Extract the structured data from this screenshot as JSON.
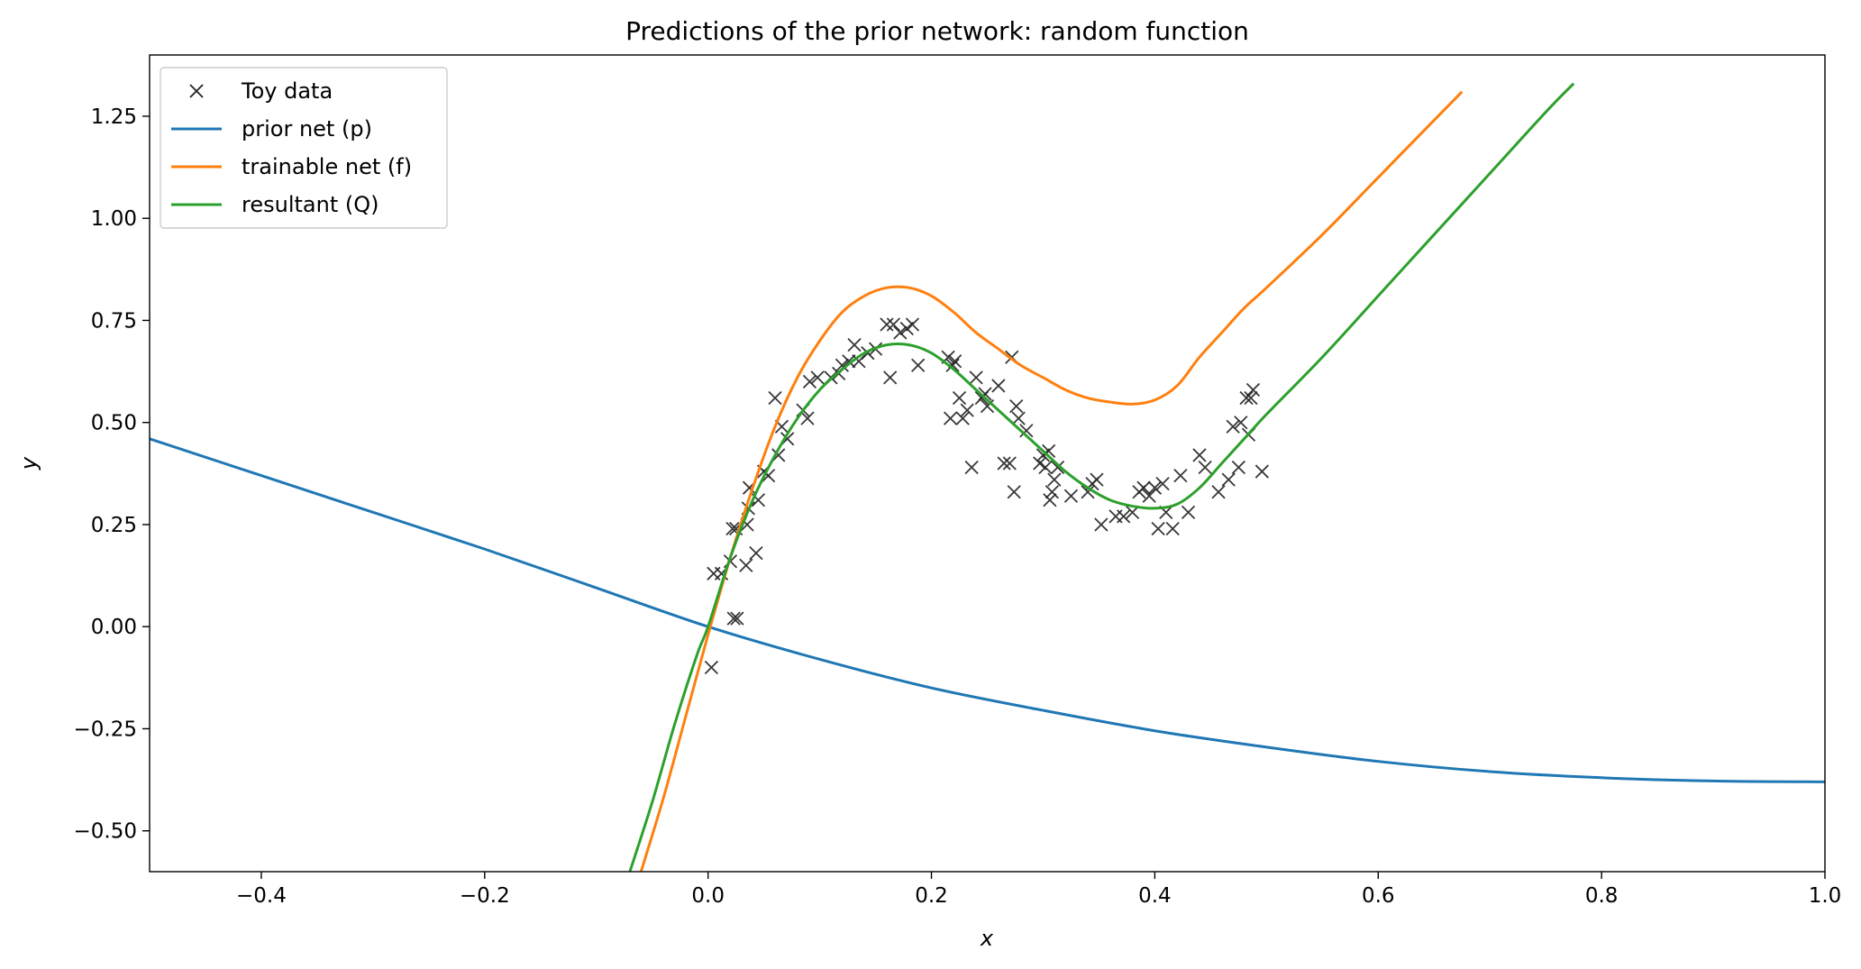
{
  "chart_data": {
    "type": "line",
    "title": "Predictions of the prior network: random function",
    "xlabel": "x",
    "ylabel": "y",
    "xlim": [
      -0.5,
      1.0
    ],
    "ylim": [
      -0.6,
      1.4
    ],
    "xticks": [
      -0.4,
      -0.2,
      0.0,
      0.2,
      0.4,
      0.6,
      0.8,
      1.0
    ],
    "xtick_labels": [
      "−0.4",
      "−0.2",
      "0.0",
      "0.2",
      "0.4",
      "0.6",
      "0.8",
      "1.0"
    ],
    "yticks": [
      -0.5,
      -0.25,
      0.0,
      0.25,
      0.5,
      0.75,
      1.0,
      1.25
    ],
    "ytick_labels": [
      "−0.50",
      "−0.25",
      "0.00",
      "0.25",
      "0.50",
      "0.75",
      "1.00",
      "1.25"
    ],
    "grid": false,
    "legend_position": "top-left",
    "scatter": {
      "name": "Toy data",
      "color": "#222222",
      "marker": "x",
      "points": [
        [
          0.003,
          -0.1
        ],
        [
          0.005,
          0.13
        ],
        [
          0.012,
          0.13
        ],
        [
          0.02,
          0.16
        ],
        [
          0.022,
          0.24
        ],
        [
          0.023,
          0.02
        ],
        [
          0.025,
          0.24
        ],
        [
          0.026,
          0.02
        ],
        [
          0.034,
          0.15
        ],
        [
          0.035,
          0.25
        ],
        [
          0.036,
          0.29
        ],
        [
          0.037,
          0.34
        ],
        [
          0.043,
          0.18
        ],
        [
          0.045,
          0.31
        ],
        [
          0.05,
          0.38
        ],
        [
          0.054,
          0.37
        ],
        [
          0.06,
          0.56
        ],
        [
          0.063,
          0.42
        ],
        [
          0.066,
          0.49
        ],
        [
          0.071,
          0.46
        ],
        [
          0.085,
          0.53
        ],
        [
          0.089,
          0.51
        ],
        [
          0.091,
          0.6
        ],
        [
          0.098,
          0.61
        ],
        [
          0.11,
          0.61
        ],
        [
          0.117,
          0.62
        ],
        [
          0.12,
          0.64
        ],
        [
          0.126,
          0.65
        ],
        [
          0.131,
          0.69
        ],
        [
          0.135,
          0.65
        ],
        [
          0.143,
          0.67
        ],
        [
          0.15,
          0.68
        ],
        [
          0.16,
          0.74
        ],
        [
          0.163,
          0.61
        ],
        [
          0.166,
          0.74
        ],
        [
          0.172,
          0.72
        ],
        [
          0.178,
          0.73
        ],
        [
          0.183,
          0.74
        ],
        [
          0.188,
          0.64
        ],
        [
          0.215,
          0.66
        ],
        [
          0.217,
          0.51
        ],
        [
          0.219,
          0.64
        ],
        [
          0.221,
          0.65
        ],
        [
          0.225,
          0.56
        ],
        [
          0.228,
          0.51
        ],
        [
          0.232,
          0.53
        ],
        [
          0.236,
          0.39
        ],
        [
          0.24,
          0.61
        ],
        [
          0.245,
          0.56
        ],
        [
          0.248,
          0.57
        ],
        [
          0.25,
          0.54
        ],
        [
          0.26,
          0.59
        ],
        [
          0.265,
          0.4
        ],
        [
          0.27,
          0.4
        ],
        [
          0.272,
          0.66
        ],
        [
          0.274,
          0.33
        ],
        [
          0.276,
          0.54
        ],
        [
          0.278,
          0.51
        ],
        [
          0.285,
          0.48
        ],
        [
          0.297,
          0.4
        ],
        [
          0.3,
          0.42
        ],
        [
          0.302,
          0.39
        ],
        [
          0.305,
          0.43
        ],
        [
          0.306,
          0.31
        ],
        [
          0.308,
          0.33
        ],
        [
          0.31,
          0.36
        ],
        [
          0.313,
          0.39
        ],
        [
          0.325,
          0.32
        ],
        [
          0.34,
          0.33
        ],
        [
          0.344,
          0.35
        ],
        [
          0.348,
          0.36
        ],
        [
          0.352,
          0.25
        ],
        [
          0.365,
          0.27
        ],
        [
          0.372,
          0.27
        ],
        [
          0.38,
          0.28
        ],
        [
          0.386,
          0.33
        ],
        [
          0.39,
          0.34
        ],
        [
          0.395,
          0.32
        ],
        [
          0.4,
          0.34
        ],
        [
          0.403,
          0.24
        ],
        [
          0.407,
          0.35
        ],
        [
          0.41,
          0.28
        ],
        [
          0.416,
          0.24
        ],
        [
          0.423,
          0.37
        ],
        [
          0.43,
          0.28
        ],
        [
          0.44,
          0.42
        ],
        [
          0.445,
          0.39
        ],
        [
          0.457,
          0.33
        ],
        [
          0.466,
          0.36
        ],
        [
          0.47,
          0.49
        ],
        [
          0.475,
          0.39
        ],
        [
          0.477,
          0.5
        ],
        [
          0.482,
          0.56
        ],
        [
          0.484,
          0.47
        ],
        [
          0.486,
          0.56
        ],
        [
          0.488,
          0.58
        ],
        [
          0.496,
          0.38
        ]
      ]
    },
    "series": [
      {
        "name": "prior net (p)",
        "color": "#1f77b4",
        "x": [
          -0.5,
          -0.4,
          -0.3,
          -0.2,
          -0.1,
          0.0,
          0.1,
          0.2,
          0.3,
          0.4,
          0.5,
          0.6,
          0.7,
          0.8,
          0.9,
          1.0
        ],
        "y": [
          0.46,
          0.37,
          0.28,
          0.19,
          0.095,
          0.0,
          -0.08,
          -0.15,
          -0.205,
          -0.255,
          -0.295,
          -0.33,
          -0.355,
          -0.37,
          -0.378,
          -0.38
        ]
      },
      {
        "name": "trainable net (f)",
        "color": "#ff7f0e",
        "x": [
          -0.06,
          -0.04,
          -0.02,
          0.0,
          0.02,
          0.04,
          0.06,
          0.08,
          0.1,
          0.12,
          0.14,
          0.16,
          0.18,
          0.2,
          0.22,
          0.24,
          0.26,
          0.28,
          0.3,
          0.32,
          0.34,
          0.36,
          0.38,
          0.4,
          0.42,
          0.44,
          0.46,
          0.48,
          0.5,
          0.55,
          0.6,
          0.65,
          0.675
        ],
        "y": [
          -0.6,
          -0.42,
          -0.22,
          -0.02,
          0.17,
          0.34,
          0.49,
          0.61,
          0.7,
          0.77,
          0.81,
          0.83,
          0.83,
          0.81,
          0.77,
          0.72,
          0.68,
          0.64,
          0.61,
          0.58,
          0.56,
          0.55,
          0.545,
          0.555,
          0.59,
          0.66,
          0.72,
          0.78,
          0.83,
          0.96,
          1.1,
          1.24,
          1.31
        ]
      },
      {
        "name": "resultant (Q)",
        "color": "#2ca02c",
        "x": [
          -0.07,
          -0.05,
          -0.03,
          -0.01,
          0.0,
          0.02,
          0.04,
          0.06,
          0.08,
          0.1,
          0.12,
          0.14,
          0.16,
          0.18,
          0.2,
          0.22,
          0.24,
          0.26,
          0.28,
          0.3,
          0.32,
          0.34,
          0.36,
          0.38,
          0.4,
          0.42,
          0.44,
          0.46,
          0.48,
          0.5,
          0.55,
          0.6,
          0.65,
          0.7,
          0.75,
          0.775
        ],
        "y": [
          -0.6,
          -0.43,
          -0.24,
          -0.07,
          0.0,
          0.17,
          0.31,
          0.42,
          0.51,
          0.58,
          0.63,
          0.67,
          0.69,
          0.69,
          0.67,
          0.63,
          0.58,
          0.53,
          0.48,
          0.43,
          0.38,
          0.34,
          0.31,
          0.295,
          0.29,
          0.3,
          0.34,
          0.4,
          0.46,
          0.52,
          0.66,
          0.81,
          0.96,
          1.11,
          1.26,
          1.33
        ]
      }
    ]
  }
}
